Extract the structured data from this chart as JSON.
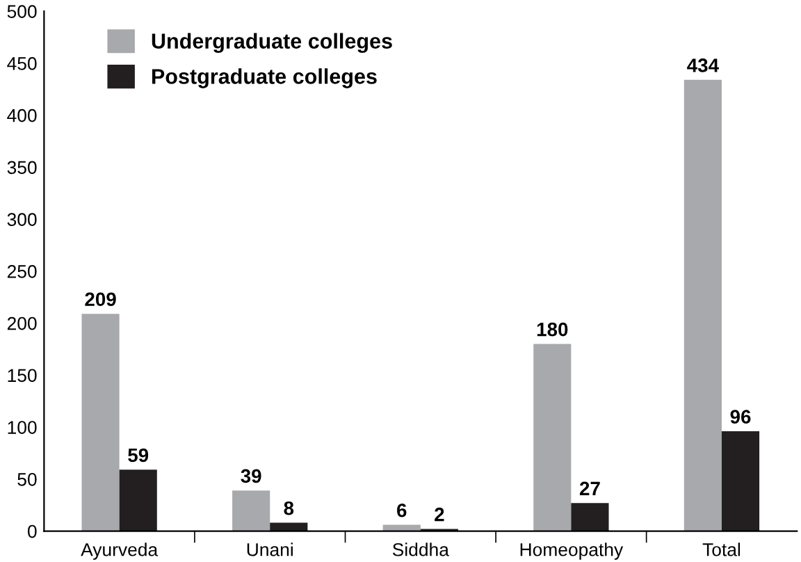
{
  "chart_data": {
    "type": "bar",
    "categories": [
      "Ayurveda",
      "Unani",
      "Siddha",
      "Homeopathy",
      "Total"
    ],
    "series": [
      {
        "name": "Undergraduate colleges",
        "color": "#a7a9ac",
        "values": [
          209,
          39,
          6,
          180,
          434
        ]
      },
      {
        "name": "Postgraduate colleges",
        "color": "#231f20",
        "values": [
          59,
          8,
          2,
          27,
          96
        ]
      }
    ],
    "ylim": [
      0,
      500
    ],
    "yticks": [
      0,
      50,
      100,
      150,
      200,
      250,
      300,
      350,
      400,
      450,
      500
    ],
    "data_labels": true,
    "legend": "top left",
    "grid": false
  }
}
